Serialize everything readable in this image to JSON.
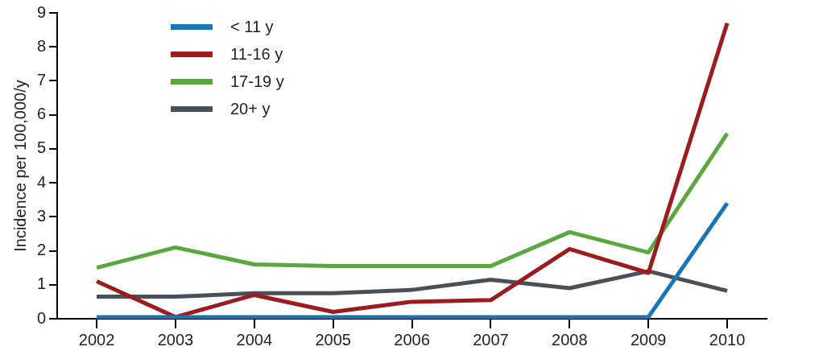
{
  "chart_data": {
    "type": "line",
    "ylabel": "Incidence per 100,000/y",
    "categories": [
      "2002",
      "2003",
      "2004",
      "2005",
      "2006",
      "2007",
      "2008",
      "2009",
      "2010"
    ],
    "series": [
      {
        "name": "< 11 y",
        "color": "#1a75b8",
        "values": [
          0.05,
          0.05,
          0.05,
          0.05,
          0.05,
          0.05,
          0.05,
          0.05,
          3.4
        ]
      },
      {
        "name": "11-16 y",
        "color": "#9b1b1f",
        "values": [
          1.1,
          0.05,
          0.7,
          0.2,
          0.5,
          0.55,
          2.05,
          1.35,
          8.7
        ]
      },
      {
        "name": "17-19 y",
        "color": "#5aa63f",
        "values": [
          1.5,
          2.1,
          1.6,
          1.55,
          1.55,
          1.55,
          2.55,
          1.95,
          5.45
        ]
      },
      {
        "name": "20+ y",
        "color": "#4a5058",
        "values": [
          0.65,
          0.65,
          0.75,
          0.75,
          0.85,
          1.15,
          0.9,
          1.4,
          0.82
        ]
      }
    ],
    "ylim": [
      0,
      9
    ],
    "yticks": [
      0,
      1,
      2,
      3,
      4,
      5,
      6,
      7,
      8,
      9
    ],
    "grid": false,
    "legend": "top left",
    "marker": "none",
    "line_style": "solid"
  }
}
